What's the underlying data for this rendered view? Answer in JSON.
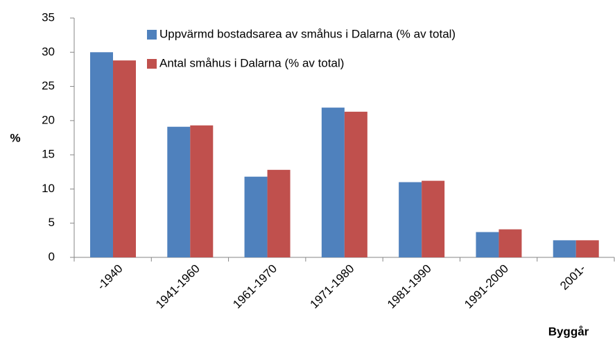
{
  "chart_data": {
    "type": "bar",
    "categories": [
      "-1940",
      "1941-1960",
      "1961-1970",
      "1971-1980",
      "1981-1990",
      "1991-2000",
      "2001-"
    ],
    "series": [
      {
        "name": "Uppvärmd bostadsarea av småhus i Dalarna (% av total)",
        "color": "#4f81bd",
        "values": [
          30,
          19.1,
          11.8,
          21.9,
          11.0,
          3.7,
          2.5
        ]
      },
      {
        "name": "Antal småhus i Dalarna (% av total)",
        "color": "#c0504d",
        "values": [
          28.8,
          19.3,
          12.8,
          21.3,
          11.2,
          4.1,
          2.5
        ]
      }
    ],
    "ylabel": "%",
    "xlabel": "Byggår",
    "ylim": [
      0,
      35
    ],
    "yticks": [
      0,
      5,
      10,
      15,
      20,
      25,
      30,
      35
    ],
    "grid": false
  }
}
